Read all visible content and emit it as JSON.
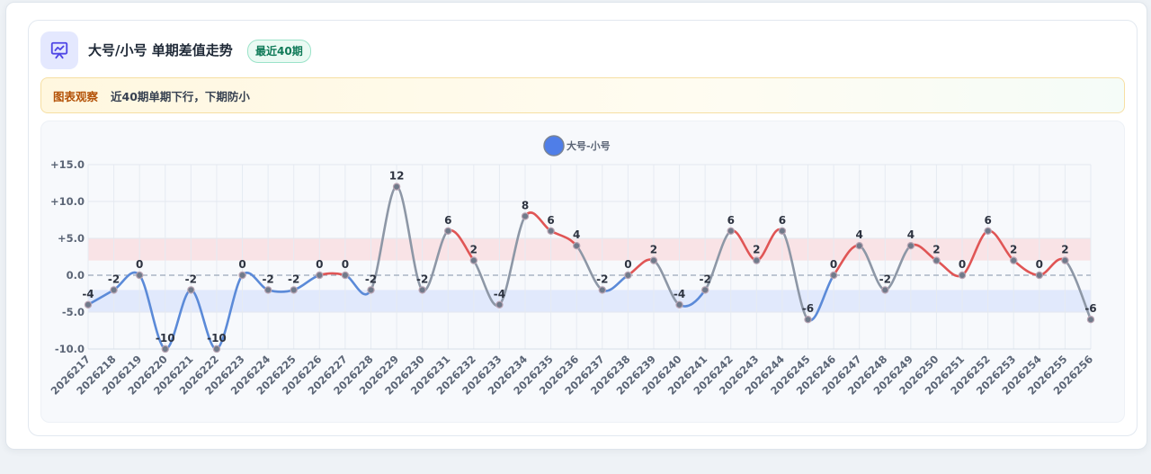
{
  "header": {
    "title": "大号/小号 单期差值走势",
    "badge": "最近40期",
    "icon": "chart-presentation-icon"
  },
  "observation": {
    "label": "图表观察",
    "text": "近40期单期下行，下期防小"
  },
  "colors": {
    "up": "#e05555",
    "down": "#5b8ad8",
    "flat": "#8d97a6",
    "legend_dot": "#4f7ee8"
  },
  "chart_data": {
    "type": "line",
    "categories": [
      "2026217",
      "2026218",
      "2026219",
      "2026220",
      "2026221",
      "2026222",
      "2026223",
      "2026224",
      "2026225",
      "2026226",
      "2026227",
      "2026228",
      "2026229",
      "2026230",
      "2026231",
      "2026232",
      "2026233",
      "2026234",
      "2026235",
      "2026236",
      "2026237",
      "2026238",
      "2026239",
      "2026240",
      "2026241",
      "2026242",
      "2026243",
      "2026244",
      "2026245",
      "2026246",
      "2026247",
      "2026248",
      "2026249",
      "2026250",
      "2026251",
      "2026252",
      "2026253",
      "2026254",
      "2026255",
      "2026256"
    ],
    "series": [
      {
        "name": "大号-小号",
        "values": [
          -4,
          -2,
          0,
          -10,
          -2,
          -10,
          0,
          -2,
          -2,
          0,
          0,
          -2,
          12,
          -2,
          6,
          2,
          -4,
          8,
          6,
          4,
          -2,
          0,
          2,
          -4,
          -2,
          6,
          2,
          6,
          -6,
          0,
          4,
          -2,
          4,
          2,
          0,
          6,
          2,
          0,
          2,
          -6
        ]
      }
    ],
    "ylim": [
      -10,
      15
    ],
    "yticks": [
      15,
      10,
      5,
      0,
      -5,
      -10
    ],
    "ytick_labels": [
      "+15.0",
      "+10.0",
      "+5.0",
      "0.0",
      "-5.0",
      "-10.0"
    ],
    "bands": [
      {
        "from": 2,
        "to": 5,
        "color": "#f9dfe2"
      },
      {
        "from": -5,
        "to": -2,
        "color": "#dde6fb"
      }
    ],
    "grid": true,
    "legend": "top-center"
  }
}
